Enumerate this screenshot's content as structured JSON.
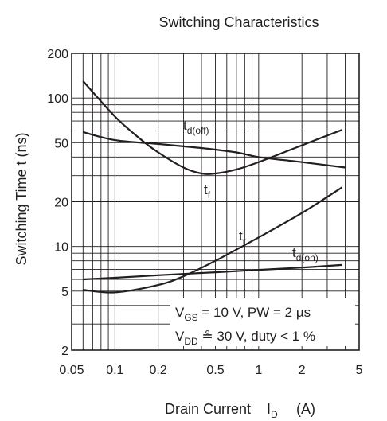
{
  "chart_data": {
    "type": "line",
    "title": "Switching Characteristics",
    "xlabel": "Drain Current",
    "xlabel_symbol": "I",
    "xlabel_symbol_sub": "D",
    "xlabel_unit": "(A)",
    "ylabel": "Switching Time  t  (ns)",
    "x_scale": "log",
    "y_scale": "log",
    "xlim": [
      0.05,
      5
    ],
    "ylim": [
      2,
      200
    ],
    "grid": true,
    "x_ticks": [
      {
        "value": 0.05,
        "label": "0.05"
      },
      {
        "value": 0.1,
        "label": "0.1"
      },
      {
        "value": 0.2,
        "label": "0.2"
      },
      {
        "value": 0.5,
        "label": "0.5"
      },
      {
        "value": 1,
        "label": "1"
      },
      {
        "value": 2,
        "label": "2"
      },
      {
        "value": 5,
        "label": "5"
      }
    ],
    "y_ticks": [
      {
        "value": 2,
        "label": "2"
      },
      {
        "value": 5,
        "label": "5"
      },
      {
        "value": 10,
        "label": "10"
      },
      {
        "value": 20,
        "label": "20"
      },
      {
        "value": 50,
        "label": "50"
      },
      {
        "value": 100,
        "label": "100"
      },
      {
        "value": 200,
        "label": "200"
      }
    ],
    "series": [
      {
        "label": "t",
        "label_sub": "d(off)",
        "x": [
          0.06,
          0.1,
          0.2,
          0.4,
          0.7,
          1,
          2,
          4
        ],
        "y": [
          59,
          52,
          49,
          46,
          43,
          40,
          37,
          34
        ]
      },
      {
        "label": "t",
        "label_sub": "f",
        "x": [
          0.06,
          0.1,
          0.15,
          0.2,
          0.3,
          0.4,
          0.5,
          0.7,
          1,
          2,
          3.8
        ],
        "y": [
          130,
          75,
          53,
          43,
          34,
          31,
          31,
          33,
          37,
          48,
          61
        ]
      },
      {
        "label": "t",
        "label_sub": "r",
        "x": [
          0.06,
          0.1,
          0.2,
          0.3,
          0.5,
          1,
          2,
          3.8
        ],
        "y": [
          5.1,
          4.9,
          5.5,
          6.3,
          8.0,
          11.5,
          16.8,
          25
        ]
      },
      {
        "label": "t",
        "label_sub": "d(on)",
        "x": [
          0.06,
          0.1,
          0.2,
          0.5,
          1,
          2,
          3.8
        ],
        "y": [
          6.0,
          6.15,
          6.4,
          6.7,
          6.95,
          7.2,
          7.5
        ]
      }
    ],
    "conditions": [
      {
        "parts": [
          [
            "V",
            "main"
          ],
          [
            "GS",
            "sub"
          ],
          [
            " = 10 V, PW = 2 µs",
            "main"
          ]
        ]
      },
      {
        "parts": [
          [
            "V",
            "main"
          ],
          [
            "DD",
            "sub"
          ],
          [
            " ≗ 30 V, duty < 1 %",
            "main"
          ]
        ]
      }
    ]
  }
}
